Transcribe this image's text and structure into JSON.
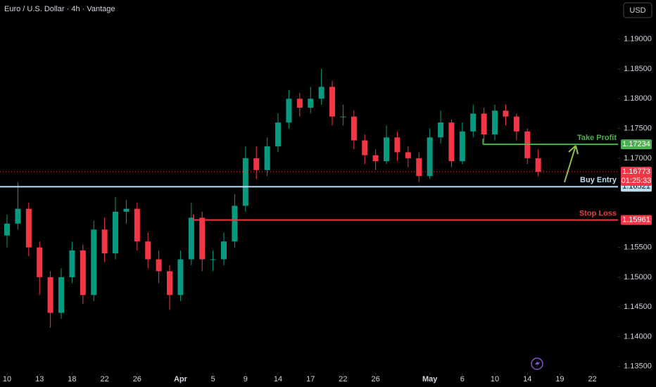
{
  "chart_data": {
    "type": "candlestick",
    "title": "Euro / U.S. Dollar · 4h · Vantage",
    "currency": "USD",
    "x": [
      0,
      1,
      2,
      3,
      4,
      5,
      6,
      7,
      8,
      9,
      10,
      11,
      12,
      13,
      14,
      15,
      16,
      17,
      18,
      19,
      20,
      21,
      22,
      23,
      24,
      25,
      26,
      27,
      28,
      29,
      30,
      31,
      32,
      33,
      34,
      35,
      36,
      37,
      38,
      39,
      40,
      41,
      42,
      43,
      44,
      45,
      46,
      47,
      48,
      49
    ],
    "open": [
      1.157,
      1.159,
      1.1615,
      1.155,
      1.15,
      1.144,
      1.15,
      1.1545,
      1.147,
      1.158,
      1.154,
      1.161,
      1.1615,
      1.156,
      1.153,
      1.151,
      1.147,
      1.153,
      1.16,
      1.153,
      1.153,
      1.156,
      1.162,
      1.17,
      1.168,
      1.172,
      1.176,
      1.18,
      1.1785,
      1.18,
      1.182,
      1.177,
      1.177,
      1.173,
      1.1705,
      1.1695,
      1.1735,
      1.171,
      1.17,
      1.167,
      1.1735,
      1.176,
      1.1695,
      1.1745,
      1.1775,
      1.174,
      1.178,
      1.177,
      1.1745,
      1.17
    ],
    "high": [
      1.1605,
      1.166,
      1.1625,
      1.156,
      1.151,
      1.1515,
      1.156,
      1.1555,
      1.1595,
      1.16,
      1.1635,
      1.163,
      1.1625,
      1.1575,
      1.1545,
      1.152,
      1.1545,
      1.1625,
      1.161,
      1.1545,
      1.1575,
      1.164,
      1.172,
      1.172,
      1.1735,
      1.1775,
      1.1815,
      1.181,
      1.182,
      1.185,
      1.183,
      1.179,
      1.178,
      1.174,
      1.1715,
      1.1755,
      1.1745,
      1.172,
      1.171,
      1.175,
      1.178,
      1.1765,
      1.176,
      1.179,
      1.1785,
      1.179,
      1.179,
      1.1775,
      1.175,
      1.1715
    ],
    "low": [
      1.155,
      1.158,
      1.1535,
      1.147,
      1.1415,
      1.143,
      1.149,
      1.1455,
      1.146,
      1.1525,
      1.153,
      1.159,
      1.1545,
      1.1515,
      1.149,
      1.1445,
      1.146,
      1.152,
      1.151,
      1.151,
      1.152,
      1.155,
      1.161,
      1.1665,
      1.167,
      1.171,
      1.175,
      1.177,
      1.1775,
      1.179,
      1.1755,
      1.1755,
      1.1715,
      1.169,
      1.168,
      1.169,
      1.1695,
      1.1685,
      1.166,
      1.1665,
      1.1725,
      1.1685,
      1.169,
      1.1735,
      1.1725,
      1.173,
      1.1755,
      1.173,
      1.169,
      1.167
    ],
    "close": [
      1.159,
      1.1615,
      1.155,
      1.15,
      1.144,
      1.15,
      1.1545,
      1.147,
      1.158,
      1.154,
      1.161,
      1.1615,
      1.156,
      1.153,
      1.151,
      1.147,
      1.153,
      1.16,
      1.153,
      1.153,
      1.156,
      1.162,
      1.17,
      1.168,
      1.172,
      1.176,
      1.18,
      1.1785,
      1.18,
      1.182,
      1.177,
      1.177,
      1.173,
      1.1705,
      1.1695,
      1.1735,
      1.171,
      1.17,
      1.167,
      1.1735,
      1.176,
      1.1695,
      1.1745,
      1.1775,
      1.174,
      1.178,
      1.177,
      1.1745,
      1.17,
      1.1677
    ],
    "up_color": "#089981",
    "down_color": "#f23645",
    "xlim": [
      -0.65,
      56.36
    ],
    "xticks": [
      {
        "value": 0,
        "label": "10"
      },
      {
        "value": 3,
        "label": "13"
      },
      {
        "value": 6,
        "label": "18"
      },
      {
        "value": 9,
        "label": "22"
      },
      {
        "value": 12,
        "label": "26"
      },
      {
        "value": 16,
        "label": "Apr"
      },
      {
        "value": 19,
        "label": "5"
      },
      {
        "value": 22,
        "label": "9"
      },
      {
        "value": 25,
        "label": "14"
      },
      {
        "value": 28,
        "label": "17"
      },
      {
        "value": 31,
        "label": "22"
      },
      {
        "value": 34,
        "label": "26"
      },
      {
        "value": 39,
        "label": "May"
      },
      {
        "value": 42,
        "label": "6"
      },
      {
        "value": 45,
        "label": "10"
      },
      {
        "value": 48,
        "label": "14"
      },
      {
        "value": 51,
        "label": "19"
      },
      {
        "value": 54,
        "label": "22"
      }
    ],
    "ylim": [
      1.1339,
      1.1966
    ],
    "yticks": [
      {
        "value": 1.135,
        "label": "1.13500"
      },
      {
        "value": 1.14,
        "label": "1.14000"
      },
      {
        "value": 1.145,
        "label": "1.14500"
      },
      {
        "value": 1.15,
        "label": "1.15000"
      },
      {
        "value": 1.155,
        "label": "1.15500"
      },
      {
        "value": 1.17,
        "label": "1.17000"
      },
      {
        "value": 1.175,
        "label": "1.17500"
      },
      {
        "value": 1.18,
        "label": "1.18000"
      },
      {
        "value": 1.185,
        "label": "1.18500"
      },
      {
        "value": 1.19,
        "label": "1.19000"
      }
    ],
    "levels": [
      {
        "name": "Take Profit",
        "value": 1.17234,
        "color": "#4caf50",
        "start": 43.9
      },
      {
        "name": "Buy Entry",
        "value": 1.16521,
        "color": "#bcdcf2"
      },
      {
        "name": "Stop Loss",
        "value": 1.15961,
        "color": "#f23645",
        "start": 17.2
      }
    ],
    "last_price": 1.16773,
    "countdown": "01:25:33"
  }
}
